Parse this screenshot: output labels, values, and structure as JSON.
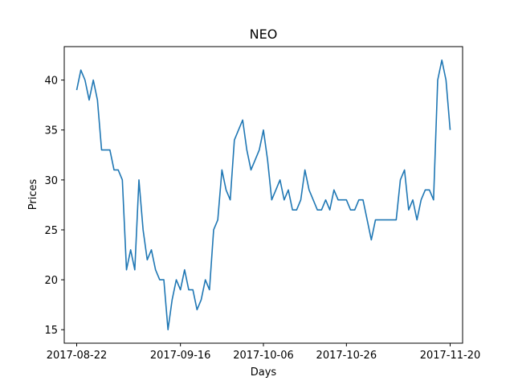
{
  "chart_data": {
    "type": "line",
    "title": "NEO",
    "xlabel": "Days",
    "ylabel": "Prices",
    "xlim": [
      "2017-08-19",
      "2017-11-23"
    ],
    "ylim": [
      13.65,
      43.35
    ],
    "x_ticks": [
      "2017-08-22",
      "2017-09-16",
      "2017-10-06",
      "2017-10-26",
      "2017-11-20"
    ],
    "y_ticks": [
      15,
      20,
      25,
      30,
      35,
      40
    ],
    "grid": false,
    "line_color": "#1f77b4",
    "series": [
      {
        "x": [
          "2017-08-22",
          "2017-08-23",
          "2017-08-24",
          "2017-08-25",
          "2017-08-26",
          "2017-08-27",
          "2017-08-28",
          "2017-08-29",
          "2017-08-30",
          "2017-08-31",
          "2017-09-01",
          "2017-09-02",
          "2017-09-03",
          "2017-09-04",
          "2017-09-05",
          "2017-09-06",
          "2017-09-07",
          "2017-09-08",
          "2017-09-09",
          "2017-09-10",
          "2017-09-11",
          "2017-09-12",
          "2017-09-13",
          "2017-09-14",
          "2017-09-15",
          "2017-09-16",
          "2017-09-17",
          "2017-09-18",
          "2017-09-19",
          "2017-09-20",
          "2017-09-21",
          "2017-09-22",
          "2017-09-23",
          "2017-09-24",
          "2017-09-25",
          "2017-09-26",
          "2017-09-27",
          "2017-09-28",
          "2017-09-29",
          "2017-09-30",
          "2017-10-01",
          "2017-10-02",
          "2017-10-03",
          "2017-10-04",
          "2017-10-05",
          "2017-10-06",
          "2017-10-07",
          "2017-10-08",
          "2017-10-09",
          "2017-10-10",
          "2017-10-11",
          "2017-10-12",
          "2017-10-13",
          "2017-10-14",
          "2017-10-15",
          "2017-10-16",
          "2017-10-17",
          "2017-10-18",
          "2017-10-19",
          "2017-10-20",
          "2017-10-21",
          "2017-10-22",
          "2017-10-23",
          "2017-10-24",
          "2017-10-25",
          "2017-10-26",
          "2017-10-27",
          "2017-10-28",
          "2017-10-29",
          "2017-10-30",
          "2017-10-31",
          "2017-11-01",
          "2017-11-02",
          "2017-11-03",
          "2017-11-04",
          "2017-11-05",
          "2017-11-06",
          "2017-11-07",
          "2017-11-08",
          "2017-11-09",
          "2017-11-10",
          "2017-11-11",
          "2017-11-12",
          "2017-11-13",
          "2017-11-14",
          "2017-11-15",
          "2017-11-16",
          "2017-11-17",
          "2017-11-18",
          "2017-11-19",
          "2017-11-20"
        ],
        "values": [
          39,
          41,
          40,
          38,
          40,
          38,
          33,
          33,
          33,
          31,
          31,
          30,
          21,
          23,
          21,
          30,
          25,
          22,
          23,
          21,
          20,
          20,
          15,
          18,
          20,
          19,
          21,
          19,
          19,
          17,
          18,
          20,
          19,
          25,
          26,
          31,
          29,
          28,
          34,
          35,
          36,
          33,
          31,
          32,
          33,
          35,
          32,
          28,
          29,
          30,
          28,
          29,
          27,
          27,
          28,
          31,
          29,
          28,
          27,
          27,
          28,
          27,
          29,
          28,
          28,
          28,
          27,
          27,
          28,
          28,
          26,
          24,
          26,
          26,
          26,
          26,
          26,
          26,
          30,
          31,
          27,
          28,
          26,
          28,
          29,
          29,
          28,
          40,
          42,
          40,
          35
        ]
      }
    ]
  }
}
